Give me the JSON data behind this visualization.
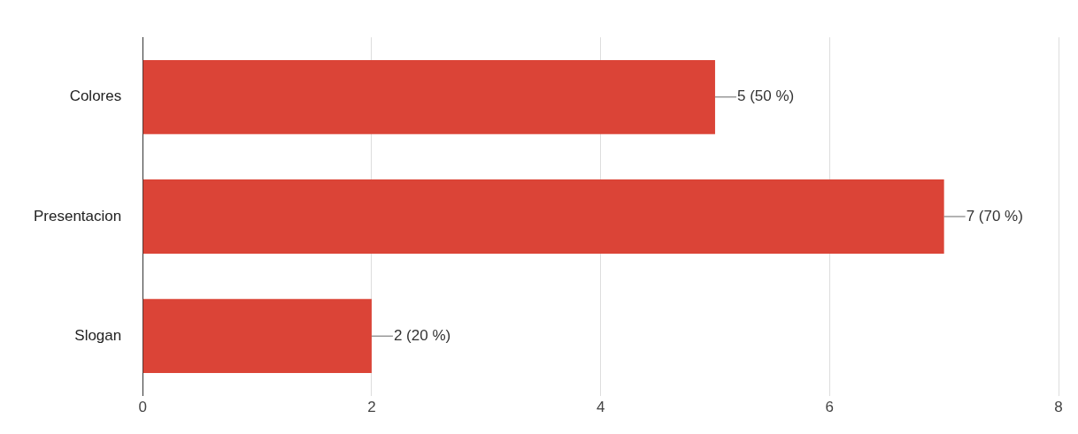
{
  "chart_data": {
    "type": "bar",
    "orientation": "horizontal",
    "categories": [
      "Colores",
      "Presentacion",
      "Slogan"
    ],
    "values": [
      5,
      7,
      2
    ],
    "color": "#db4437",
    "value_labels": [
      "5 (50 %)",
      "7 (70 %)",
      "2 (20 %)"
    ],
    "xlim": [
      0,
      8
    ],
    "xticks": [
      0,
      2,
      4,
      6,
      8
    ],
    "grid": "x",
    "legend": false
  }
}
